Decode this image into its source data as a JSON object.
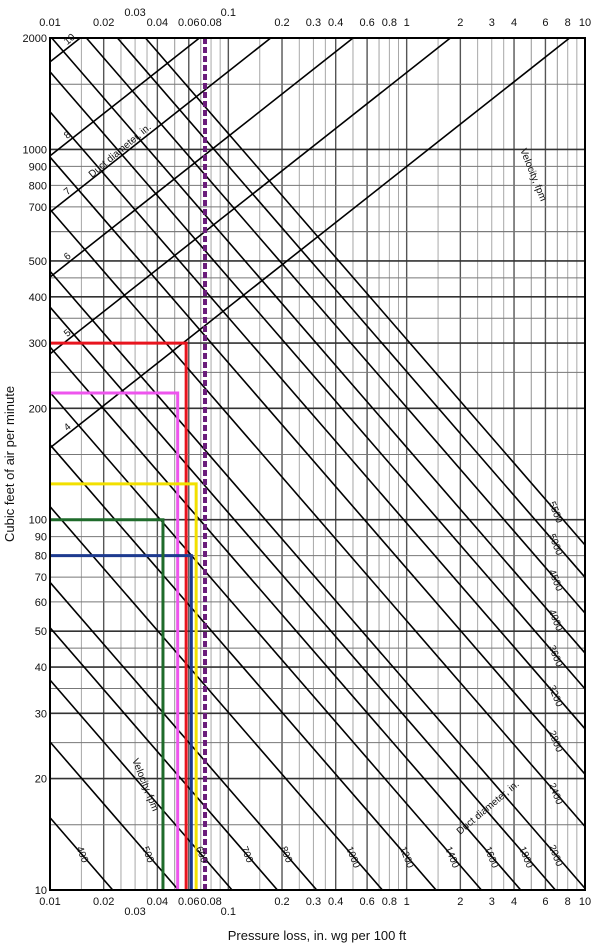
{
  "chart_data": {
    "type": "line",
    "title": "",
    "xlabel": "Pressure loss, in. wg per 100 ft",
    "ylabel": "Cubic feet of air per minute",
    "x_scale": "log",
    "y_scale": "log",
    "xlim": [
      0.01,
      10
    ],
    "ylim": [
      10,
      2000
    ],
    "grid": true,
    "x_ticks_bottom": [
      "0.01",
      "0.02",
      "0.03",
      "0.04",
      "0.06",
      "0.08",
      "0.1",
      "0.2",
      "0.3",
      "0.4",
      "0.6",
      "0.8",
      "1",
      "2",
      "3",
      "4",
      "6",
      "8",
      "10"
    ],
    "x_ticks_top": [
      "0.01",
      "0.02",
      "0.03",
      "0.04",
      "0.06",
      "0.08",
      "0.1",
      "0.2",
      "0.3",
      "0.4",
      "0.6",
      "0.8",
      "1",
      "2",
      "3",
      "4",
      "6",
      "8",
      "10"
    ],
    "y_ticks": [
      "10",
      "20",
      "30",
      "40",
      "50",
      "60",
      "70",
      "80",
      "90",
      "100",
      "200",
      "300",
      "400",
      "500",
      "700",
      "800",
      "900",
      "1000",
      "2000"
    ],
    "annotations": {
      "duct_diameter_label": "Duct diameter, in.",
      "velocity_label": "Velocity, fpm",
      "duct_diameters_in": [
        4,
        5,
        6,
        7,
        8,
        10,
        12,
        14,
        16,
        18,
        20,
        22,
        24
      ],
      "velocities_fpm": [
        200,
        300,
        400,
        500,
        600,
        700,
        800,
        1000,
        1200,
        1400,
        1600,
        1800,
        2000,
        2400,
        2800,
        3200,
        3600,
        4000,
        4500,
        5000,
        5500
      ]
    },
    "series": [
      {
        "color": "#e8141e",
        "points": [
          [
            0.01,
            300
          ],
          [
            0.058,
            300
          ],
          [
            0.058,
            10
          ]
        ]
      },
      {
        "color": "#ee55ee",
        "points": [
          [
            0.01,
            220
          ],
          [
            0.052,
            220
          ],
          [
            0.052,
            10
          ]
        ]
      },
      {
        "color": "#f2e000",
        "points": [
          [
            0.01,
            125
          ],
          [
            0.066,
            125
          ],
          [
            0.066,
            10
          ]
        ]
      },
      {
        "color": "#1d3a8f",
        "points": [
          [
            0.01,
            80
          ],
          [
            0.062,
            80
          ],
          [
            0.062,
            10
          ]
        ]
      },
      {
        "color": "#1f6b2b",
        "points": [
          [
            0.01,
            100
          ],
          [
            0.043,
            100
          ],
          [
            0.043,
            10
          ]
        ]
      },
      {
        "color": "#6a1d7a",
        "dashed": true,
        "points": [
          [
            0.074,
            2000
          ],
          [
            0.074,
            10
          ]
        ]
      }
    ]
  }
}
